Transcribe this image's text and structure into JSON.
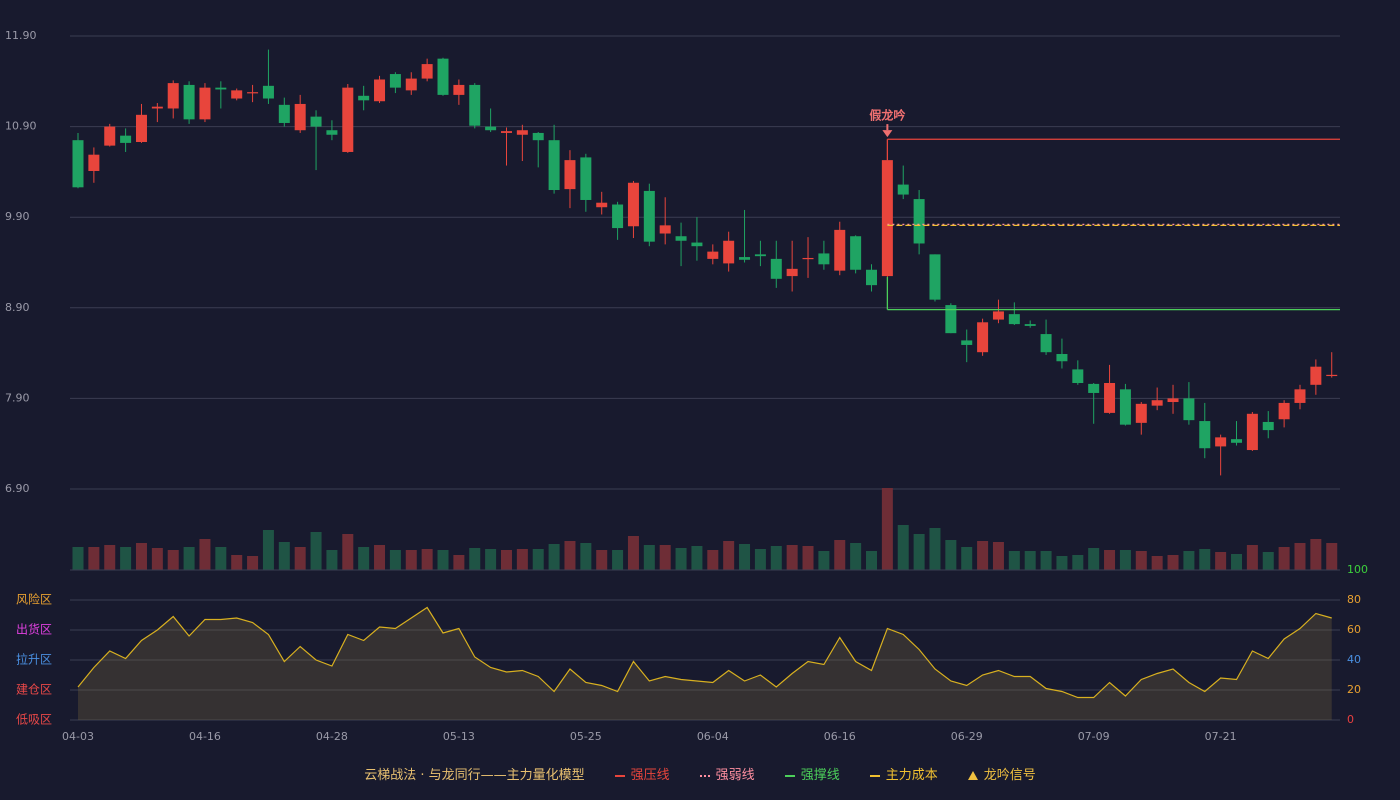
{
  "chart_data": [
    {
      "type": "candlestick",
      "categories": [
        "04-03",
        null,
        null,
        null,
        null,
        null,
        null,
        null,
        "04-16",
        null,
        null,
        null,
        null,
        null,
        null,
        null,
        "04-28",
        null,
        null,
        null,
        null,
        null,
        null,
        null,
        "05-13",
        null,
        null,
        null,
        null,
        null,
        null,
        null,
        "05-25",
        null,
        null,
        null,
        null,
        null,
        null,
        null,
        "06-04",
        null,
        null,
        null,
        null,
        null,
        null,
        null,
        "06-16",
        null,
        null,
        null,
        null,
        null,
        null,
        null,
        "06-29",
        null,
        null,
        null,
        null,
        null,
        null,
        null,
        "07-09",
        null,
        null,
        null,
        null,
        null,
        null,
        null,
        "07-21",
        null,
        null,
        null,
        null,
        null,
        null,
        null
      ],
      "open": [
        10.75,
        10.41,
        10.69,
        10.8,
        10.73,
        11.1,
        11.1,
        11.36,
        10.98,
        11.33,
        11.21,
        11.27,
        11.35,
        11.14,
        10.86,
        11.01,
        10.86,
        10.62,
        11.24,
        11.18,
        11.48,
        11.3,
        11.43,
        11.65,
        11.25,
        11.36,
        10.9,
        10.83,
        10.81,
        10.83,
        10.75,
        10.21,
        10.56,
        10.01,
        10.04,
        9.8,
        10.19,
        9.72,
        9.69,
        9.62,
        9.44,
        9.39,
        9.46,
        9.49,
        9.44,
        9.25,
        9.44,
        9.5,
        9.31,
        9.69,
        9.32,
        9.25,
        10.26,
        10.1,
        9.49,
        8.93,
        8.54,
        8.41,
        8.77,
        8.83,
        8.72,
        8.61,
        8.39,
        8.22,
        8.06,
        7.74,
        8.0,
        7.63,
        7.82,
        7.86,
        7.9,
        7.65,
        7.37,
        7.45,
        7.33,
        7.64,
        7.67,
        7.85,
        8.05,
        8.15
      ],
      "high": [
        10.83,
        10.67,
        10.93,
        10.88,
        11.15,
        11.16,
        11.41,
        11.4,
        11.38,
        11.4,
        11.32,
        11.36,
        11.75,
        11.22,
        11.25,
        11.08,
        10.97,
        11.37,
        11.35,
        11.46,
        11.5,
        11.5,
        11.65,
        11.66,
        11.42,
        11.38,
        11.1,
        10.89,
        10.92,
        10.84,
        10.92,
        10.64,
        10.6,
        10.18,
        10.07,
        10.3,
        10.27,
        10.12,
        9.84,
        9.9,
        9.6,
        9.74,
        9.98,
        9.64,
        9.64,
        9.64,
        9.68,
        9.64,
        9.85,
        9.7,
        9.38,
        10.53,
        10.47,
        10.2,
        9.49,
        8.95,
        8.66,
        8.78,
        8.99,
        8.96,
        8.76,
        8.77,
        8.56,
        8.32,
        8.07,
        8.27,
        8.06,
        7.86,
        8.02,
        8.05,
        8.08,
        7.85,
        7.5,
        7.65,
        7.75,
        7.76,
        7.88,
        8.05,
        8.33,
        8.41
      ],
      "low": [
        10.22,
        10.28,
        10.68,
        10.62,
        10.72,
        10.95,
        10.99,
        10.93,
        10.95,
        11.1,
        11.19,
        11.17,
        11.15,
        10.9,
        10.83,
        10.42,
        10.75,
        10.61,
        11.08,
        11.16,
        11.27,
        11.25,
        11.4,
        11.24,
        11.14,
        10.88,
        10.84,
        10.47,
        10.52,
        10.45,
        10.16,
        10.0,
        9.96,
        9.93,
        9.65,
        9.67,
        9.58,
        9.6,
        9.36,
        9.42,
        9.38,
        9.3,
        9.4,
        9.36,
        9.12,
        9.08,
        9.23,
        9.32,
        9.26,
        9.28,
        9.08,
        9.24,
        10.1,
        9.49,
        8.97,
        8.62,
        8.3,
        8.37,
        8.73,
        8.71,
        8.68,
        8.38,
        8.23,
        8.05,
        7.62,
        7.73,
        7.6,
        7.5,
        7.77,
        7.73,
        7.61,
        7.24,
        7.05,
        7.38,
        7.32,
        7.46,
        7.58,
        7.78,
        7.94,
        8.13
      ],
      "close": [
        10.23,
        10.59,
        10.9,
        10.72,
        11.03,
        11.12,
        11.38,
        10.98,
        11.33,
        11.31,
        11.3,
        11.28,
        11.21,
        10.94,
        11.15,
        10.9,
        10.81,
        11.33,
        11.19,
        11.42,
        11.33,
        11.43,
        11.59,
        11.25,
        11.36,
        10.91,
        10.86,
        10.85,
        10.86,
        10.75,
        10.2,
        10.53,
        10.09,
        10.06,
        9.78,
        10.28,
        9.63,
        9.81,
        9.64,
        9.58,
        9.52,
        9.64,
        9.43,
        9.47,
        9.22,
        9.33,
        9.45,
        9.38,
        9.76,
        9.32,
        9.15,
        10.53,
        10.15,
        9.61,
        8.99,
        8.62,
        8.49,
        8.74,
        8.86,
        8.72,
        8.7,
        8.41,
        8.31,
        8.07,
        7.96,
        8.07,
        7.61,
        7.84,
        7.88,
        7.9,
        7.66,
        7.35,
        7.47,
        7.41,
        7.73,
        7.55,
        7.85,
        8.0,
        8.25,
        8.16
      ],
      "volume": [
        23,
        23,
        25,
        23,
        27,
        22,
        20,
        23,
        31,
        23,
        15,
        14,
        40,
        28,
        23,
        38,
        20,
        36,
        23,
        25,
        20,
        20,
        21,
        20,
        15,
        22,
        21,
        20,
        21,
        21,
        26,
        29,
        27,
        20,
        20,
        34,
        25,
        25,
        22,
        24,
        20,
        29,
        26,
        21,
        24,
        25,
        24,
        19,
        30,
        27,
        19,
        82,
        45,
        36,
        42,
        30,
        23,
        29,
        28,
        19,
        19,
        19,
        14,
        15,
        22,
        20,
        20,
        19,
        14,
        15,
        19,
        21,
        18,
        16,
        25,
        18,
        23,
        27,
        31,
        27
      ],
      "volume_ylim": [
        0,
        82
      ],
      "up_color": "#e8453c",
      "down_color": "#1fa463",
      "volume_up_color": "#6e2d36",
      "volume_down_color": "#1f5445",
      "ylim": [
        6.9,
        11.9
      ],
      "yticks": [
        {
          "value": 11.9,
          "label": "11.90"
        },
        {
          "value": 10.9,
          "label": "10.90"
        },
        {
          "value": 9.9,
          "label": "9.90"
        },
        {
          "value": 8.9,
          "label": "8.90"
        },
        {
          "value": 7.9,
          "label": "7.90"
        },
        {
          "value": 6.9,
          "label": "6.90"
        }
      ],
      "grid": true,
      "levels": [
        {
          "name": "强压线",
          "value": 10.76,
          "color": "#e8453c",
          "style": "solid",
          "connect": "high"
        },
        {
          "name": "强弱线",
          "value": 9.82,
          "color": "#ff8fa0",
          "style": "dotted"
        },
        {
          "name": "强撑线",
          "value": 8.88,
          "color": "#4ccf5a",
          "style": "solid",
          "connect": "low"
        },
        {
          "name": "主力成本",
          "value": 9.81,
          "color": "#f0c030",
          "style": "dashed"
        }
      ],
      "signal": {
        "name": "龙吟信号",
        "label": "假龙吟",
        "index": 51,
        "color": "#f07070",
        "legend_color": "#f0c040"
      },
      "legend_title": "云梯战法 · 与龙同行——主力量化模型"
    },
    {
      "type": "area",
      "values": [
        22,
        35,
        46,
        41,
        53,
        60,
        69,
        56,
        67,
        67,
        68,
        65,
        57,
        39,
        49,
        40,
        36,
        57,
        53,
        62,
        61,
        68,
        75,
        58,
        61,
        42,
        35,
        32,
        33,
        29,
        19,
        34,
        25,
        23,
        19,
        39,
        26,
        29,
        27,
        26,
        25,
        33,
        26,
        30,
        22,
        31,
        39,
        37,
        55,
        39,
        33,
        61,
        57,
        47,
        34,
        26,
        23,
        30,
        33,
        29,
        29,
        21,
        19,
        15,
        15,
        25,
        16,
        27,
        31,
        34,
        25,
        19,
        28,
        27,
        46,
        41,
        54,
        61,
        71,
        68
      ],
      "color": "#d8b020",
      "fill": "rgba(130,110,60,0.28)",
      "ylim": [
        0,
        100
      ],
      "yticks": [
        0,
        20,
        40,
        60,
        80,
        100
      ],
      "ytick_colors": [
        "#e84040",
        "#e8a030",
        "#4a90e2",
        "#e8a030",
        "#e8a030",
        "#3ccf3c"
      ],
      "zones": [
        {
          "label": "风险区",
          "value": 80,
          "color": "#e8a030"
        },
        {
          "label": "出货区",
          "value": 60,
          "color": "#e040e0"
        },
        {
          "label": "拉升区",
          "value": 40,
          "color": "#4a90e2"
        },
        {
          "label": "建仓区",
          "value": 20,
          "color": "#e84848"
        },
        {
          "label": "低吸区",
          "value": 0,
          "color": "#e84848"
        }
      ]
    }
  ]
}
